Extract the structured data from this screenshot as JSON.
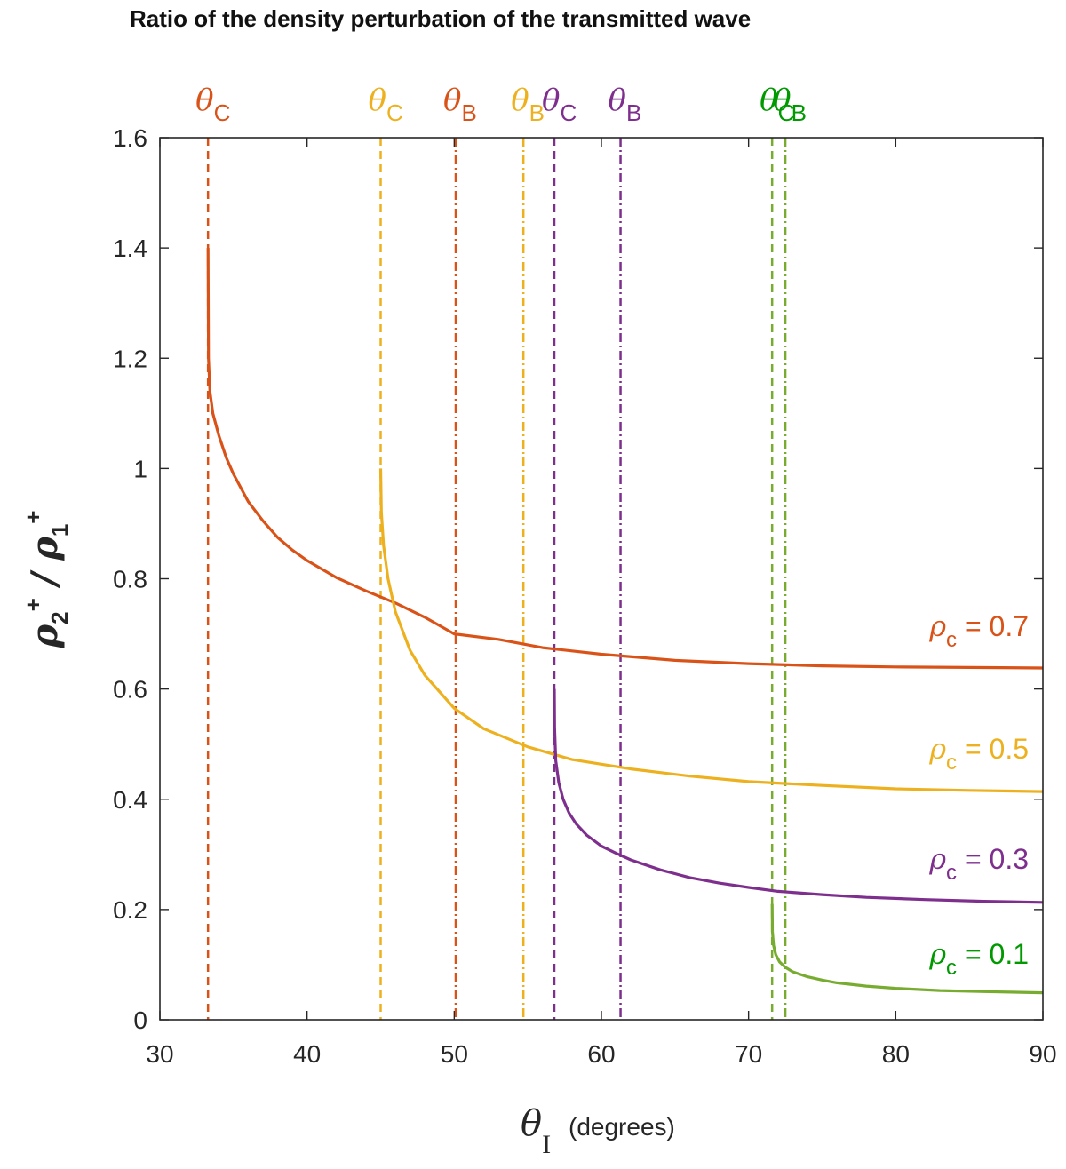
{
  "chart_data": {
    "type": "line",
    "title": "Ratio of the density perturbation of the transmitted wave",
    "xlabel": {
      "symbol": "θ",
      "subscript": "I",
      "units": "(degrees)"
    },
    "ylabel": {
      "num": "ρ",
      "num_sub": "2",
      "num_sup": "+",
      "sep": "/",
      "den": "ρ",
      "den_sub": "1",
      "den_sup": "+"
    },
    "xlim": [
      30,
      90
    ],
    "ylim": [
      0,
      1.6
    ],
    "xticks": [
      "30",
      "40",
      "50",
      "60",
      "70",
      "80",
      "90"
    ],
    "yticks": [
      "0",
      "0.2",
      "0.4",
      "0.6",
      "0.8",
      "1",
      "1.2",
      "1.4",
      "1.6"
    ],
    "grid": false,
    "series": [
      {
        "name": "ρc = 0.7",
        "label_symbol": "ρ",
        "label_sub": "c",
        "label_value": "= 0.7",
        "color": "#D95319",
        "critical_angle": 33.27,
        "brewster_angle": 50.1,
        "critical_label": "C",
        "brewster_label": "B",
        "x": [
          33.27,
          33.3,
          33.4,
          33.6,
          34.0,
          34.5,
          35,
          36,
          37,
          38,
          39,
          40,
          42,
          44,
          46,
          48,
          50,
          53,
          56,
          60,
          65,
          70,
          75,
          80,
          85,
          90
        ],
        "y": [
          1.4,
          1.2,
          1.14,
          1.1,
          1.06,
          1.02,
          0.99,
          0.94,
          0.905,
          0.875,
          0.852,
          0.833,
          0.802,
          0.778,
          0.756,
          0.73,
          0.7,
          0.69,
          0.675,
          0.663,
          0.652,
          0.646,
          0.642,
          0.64,
          0.639,
          0.638
        ]
      },
      {
        "name": "ρc = 0.5",
        "label_symbol": "ρ",
        "label_sub": "c",
        "label_value": "= 0.5",
        "color": "#EDB120",
        "critical_angle": 45.0,
        "brewster_angle": 54.7,
        "critical_label": "C",
        "brewster_label": "B",
        "x": [
          45.0,
          45.05,
          45.2,
          45.5,
          46,
          47,
          48,
          50,
          52,
          55,
          58,
          62,
          66,
          70,
          75,
          80,
          85,
          90
        ],
        "y": [
          1.0,
          0.92,
          0.86,
          0.8,
          0.74,
          0.67,
          0.625,
          0.565,
          0.528,
          0.495,
          0.472,
          0.455,
          0.442,
          0.432,
          0.425,
          0.419,
          0.416,
          0.414
        ]
      },
      {
        "name": "ρc = 0.3",
        "label_symbol": "ρ",
        "label_sub": "c",
        "label_value": "= 0.3",
        "color": "#7E2F8E",
        "critical_angle": 56.8,
        "brewster_angle": 61.3,
        "critical_label": "C",
        "brewster_label": "B",
        "x": [
          56.8,
          56.82,
          56.9,
          57.1,
          57.4,
          57.8,
          58.3,
          59,
          60,
          61,
          62,
          64,
          66,
          68,
          70,
          72,
          75,
          78,
          82,
          86,
          90
        ],
        "y": [
          0.6,
          0.53,
          0.47,
          0.43,
          0.4,
          0.375,
          0.355,
          0.335,
          0.315,
          0.302,
          0.29,
          0.272,
          0.258,
          0.248,
          0.24,
          0.233,
          0.227,
          0.222,
          0.218,
          0.215,
          0.213
        ]
      },
      {
        "name": "ρc = 0.1",
        "label_symbol": "ρ",
        "label_sub": "c",
        "label_value": "= 0.1",
        "color": "#77AC30",
        "critical_angle": 71.6,
        "brewster_angle": 72.5,
        "critical_label": "C",
        "brewster_label": "B",
        "x": [
          71.6,
          71.62,
          71.7,
          71.85,
          72.1,
          72.5,
          73,
          74,
          75,
          76,
          78,
          80,
          83,
          86,
          90
        ],
        "y": [
          0.21,
          0.16,
          0.135,
          0.118,
          0.105,
          0.095,
          0.087,
          0.078,
          0.072,
          0.067,
          0.061,
          0.057,
          0.053,
          0.051,
          0.049
        ]
      }
    ],
    "annotations": [
      {
        "symbol": "θ",
        "sub": "C",
        "series": 0,
        "line": "critical",
        "color": "#D95319"
      },
      {
        "symbol": "θ",
        "sub": "C",
        "series": 1,
        "line": "critical",
        "color": "#EDB120"
      },
      {
        "symbol": "θ",
        "sub": "B",
        "series": 0,
        "line": "brewster",
        "color": "#D95319"
      },
      {
        "symbol": "θ",
        "sub": "B",
        "series": 1,
        "line": "brewster",
        "color": "#EDB120"
      },
      {
        "symbol": "θ",
        "sub": "C",
        "series": 2,
        "line": "critical",
        "color": "#7E2F8E"
      },
      {
        "symbol": "θ",
        "sub": "B",
        "series": 2,
        "line": "brewster",
        "color": "#7E2F8E"
      },
      {
        "symbol": "θ",
        "sub": "C",
        "series": 3,
        "line": "critical",
        "color": "#009900"
      },
      {
        "symbol": "θ",
        "sub": "B",
        "series": 3,
        "line": "brewster",
        "color": "#009900"
      }
    ],
    "series_label_colors": [
      "#D95319",
      "#EDB120",
      "#7E2F8E",
      "#009900"
    ]
  }
}
